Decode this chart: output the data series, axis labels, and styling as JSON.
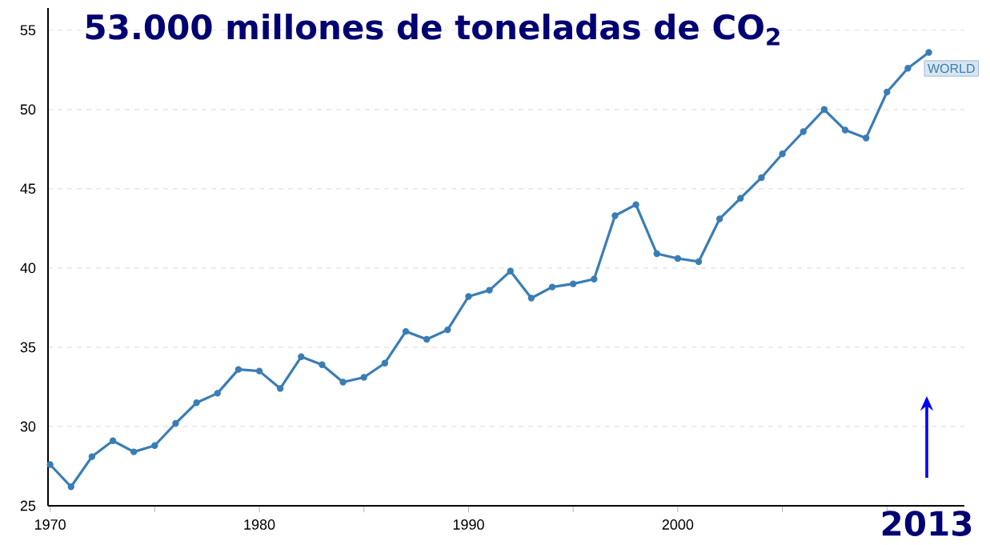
{
  "chart_data": {
    "type": "line",
    "title": "53.000 millones de toneladas de CO$_{2}$",
    "x": [
      1970,
      1971,
      1972,
      1973,
      1974,
      1975,
      1976,
      1977,
      1978,
      1979,
      1980,
      1981,
      1982,
      1983,
      1984,
      1985,
      1986,
      1987,
      1988,
      1989,
      1990,
      1991,
      1992,
      1993,
      1994,
      1995,
      1996,
      1997,
      1998,
      1999,
      2000,
      2001,
      2002,
      2003,
      2004,
      2005,
      2006,
      2007,
      2008,
      2009,
      2010,
      2011,
      2012
    ],
    "series": [
      {
        "name": "WORLD",
        "color": "#3a7db5",
        "values": [
          27.6,
          26.2,
          28.1,
          29.1,
          28.4,
          28.8,
          30.2,
          31.5,
          32.1,
          33.6,
          33.5,
          32.4,
          34.4,
          33.9,
          32.8,
          33.1,
          34.0,
          36.0,
          35.5,
          36.1,
          38.2,
          38.6,
          39.8,
          38.1,
          38.8,
          39.0,
          39.3,
          43.3,
          44.0,
          40.9,
          40.6,
          40.4,
          43.1,
          44.4,
          45.7,
          47.2,
          48.6,
          50.0,
          48.7,
          48.2,
          51.1,
          52.6,
          53.6
        ]
      }
    ],
    "xlim": [
      1969.9,
      2013.7
    ],
    "ylim": [
      25,
      56.4
    ],
    "xticks": [
      1970,
      {
        "value": 1975,
        "label": null
      },
      1980,
      {
        "value": 1985,
        "label": null
      },
      1990,
      {
        "value": 1995,
        "label": null
      },
      2000,
      {
        "value": 2005,
        "label": null
      },
      {
        "value": 2010,
        "label": null
      }
    ],
    "yticks": [
      25,
      30,
      35,
      40,
      45,
      50,
      55
    ],
    "grid": "y",
    "marker": "circle",
    "line_style": "solid",
    "annotations": [
      "2013"
    ]
  }
}
